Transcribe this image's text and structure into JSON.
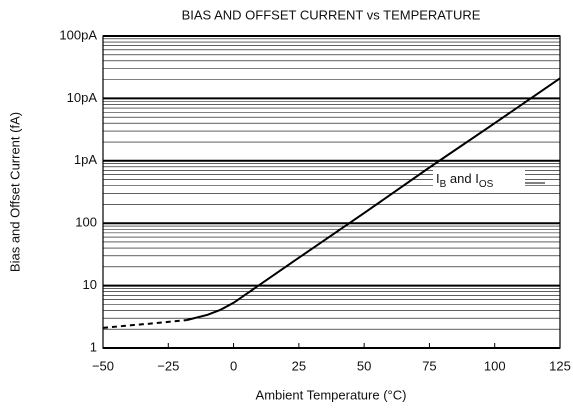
{
  "chart_data": {
    "type": "line",
    "title": "BIAS AND OFFSET CURRENT vs TEMPERATURE",
    "x_label": "Ambient Temperature (°C)",
    "y_label": "Bias and Offset Current (fA)",
    "annotation": [
      "I",
      "B",
      " and I",
      "OS"
    ],
    "log_y": true,
    "grid": true,
    "xlim": [
      -50,
      125
    ],
    "xticks": [
      {
        "value": -50,
        "label": "−50"
      },
      {
        "value": -25,
        "label": "−25"
      },
      0,
      25,
      50,
      75,
      100,
      125
    ],
    "ylim": [
      1,
      100000
    ],
    "yticks": [
      1,
      10,
      100,
      {
        "value": 1000,
        "label": "1pA"
      },
      {
        "value": 10000,
        "label": "10pA"
      },
      {
        "value": 100000,
        "label": "100pA"
      }
    ],
    "series": [
      {
        "color": "#000000",
        "dashed": true,
        "x": [
          -50,
          -40,
          -30,
          -18
        ],
        "values": [
          2.1,
          2.3,
          2.5,
          2.8
        ]
      },
      {
        "color": "#000000",
        "dashed": false,
        "x": [
          -18,
          -10,
          -5,
          0,
          25,
          50,
          75,
          100,
          125
        ],
        "values": [
          2.8,
          3.4,
          4.1,
          5.3,
          28,
          145,
          780,
          4000,
          21000
        ]
      }
    ]
  }
}
